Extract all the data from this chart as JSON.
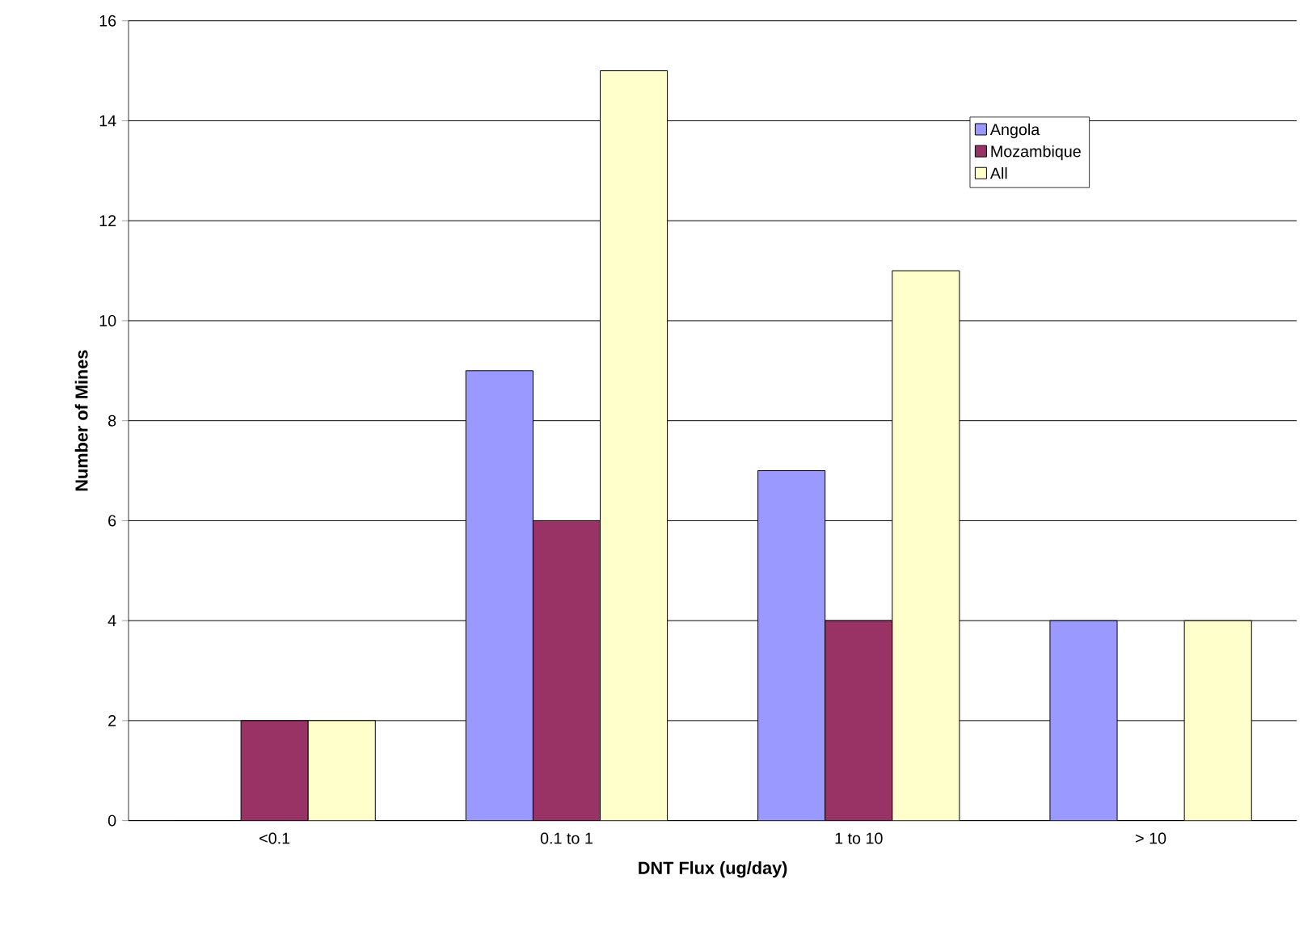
{
  "chart_data": {
    "type": "bar",
    "xlabel": "DNT Flux (ug/day)",
    "ylabel": "Number of Mines",
    "categories": [
      "<0.1",
      "0.1 to 1",
      "1 to 10",
      "> 10"
    ],
    "series": [
      {
        "name": "Angola",
        "color": "#9999ff",
        "values": [
          0,
          9,
          7,
          4
        ]
      },
      {
        "name": "Mozambique",
        "color": "#993366",
        "values": [
          2,
          6,
          4,
          0
        ]
      },
      {
        "name": "All",
        "color": "#ffffcc",
        "values": [
          2,
          15,
          11,
          4
        ]
      }
    ],
    "ylim": [
      0,
      16
    ],
    "yticks": [
      0,
      2,
      4,
      6,
      8,
      10,
      12,
      14,
      16
    ],
    "grid": "y",
    "legend": "top right"
  }
}
